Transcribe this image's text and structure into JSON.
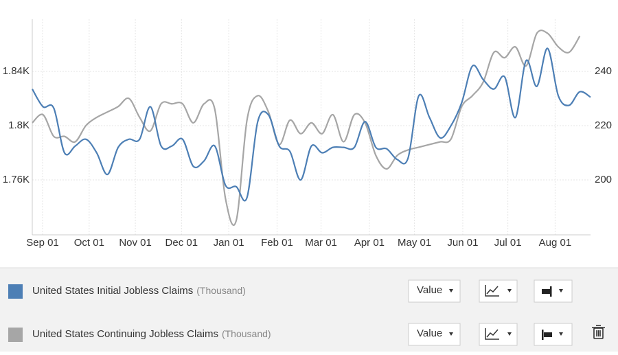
{
  "chart_data": {
    "type": "line",
    "xlim": [
      0,
      52
    ],
    "xticks": [
      {
        "value": 0.96,
        "label": "Sep 01"
      },
      {
        "value": 5.3,
        "label": "Oct 01"
      },
      {
        "value": 9.6,
        "label": "Nov 01"
      },
      {
        "value": 13.9,
        "label": "Dec 01"
      },
      {
        "value": 18.3,
        "label": "Jan 01"
      },
      {
        "value": 22.8,
        "label": "Feb 01"
      },
      {
        "value": 26.9,
        "label": "Mar 01"
      },
      {
        "value": 31.4,
        "label": "Apr 01"
      },
      {
        "value": 35.6,
        "label": "May 01"
      },
      {
        "value": 40.1,
        "label": "Jun 01"
      },
      {
        "value": 44.3,
        "label": "Jul 01"
      },
      {
        "value": 48.7,
        "label": "Aug 01"
      }
    ],
    "ylim": [
      1719.5,
      1878.5
    ],
    "yticks": [
      {
        "value": 1760,
        "label": "1.76K"
      },
      {
        "value": 1800,
        "label": "1.8K"
      },
      {
        "value": 1840,
        "label": "1.84K"
      }
    ],
    "y2lim": [
      179.7,
      259.2
    ],
    "y2ticks": [
      200,
      220,
      240
    ],
    "grid": true,
    "unit": "(Thousand)",
    "button_label": "Value",
    "series": [
      {
        "name": "United States Initial Jobless Claims",
        "color": "#4d7fb5",
        "values": [
          1827,
          1814,
          1813,
          1780,
          1785,
          1790,
          1780,
          1764,
          1784,
          1790,
          1790,
          1814,
          1785,
          1785,
          1790,
          1770,
          1774,
          1785,
          1756,
          1755,
          1747,
          1803,
          1808,
          1785,
          1781,
          1760,
          1785,
          1780,
          1784,
          1784,
          1784,
          1803,
          1784,
          1783,
          1775,
          1776,
          1822,
          1806,
          1791,
          1800,
          1817,
          1844,
          1834,
          1827,
          1836,
          1806,
          1848,
          1829,
          1857,
          1822,
          1815,
          1825,
          1821
        ]
      },
      {
        "name": "United States Continuing Jobless Claims",
        "color": "#a6a6a6",
        "axis": "y2",
        "values": [
          221,
          224,
          216,
          216,
          214,
          220,
          223,
          225,
          227,
          230,
          223,
          218,
          228,
          228,
          228,
          221,
          228,
          226,
          193,
          185,
          222,
          231,
          225,
          213,
          222,
          217,
          221,
          217,
          224,
          214,
          224,
          221,
          209,
          204,
          209,
          211,
          212,
          213,
          214,
          215,
          227,
          231,
          236,
          247,
          245,
          249,
          242,
          254,
          254,
          249,
          247,
          253,
          null
        ]
      }
    ]
  }
}
